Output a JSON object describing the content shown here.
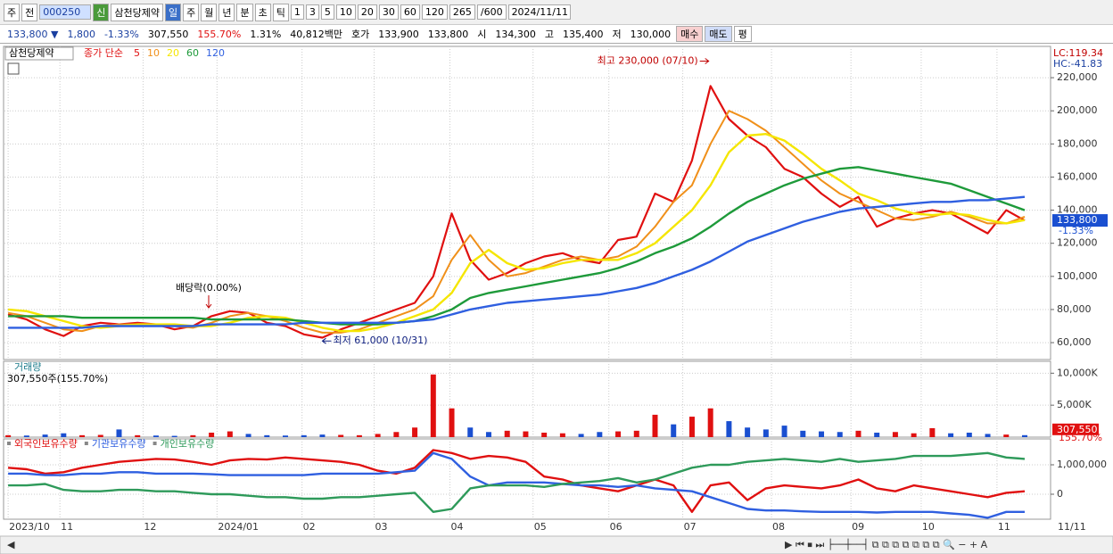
{
  "toolbar": {
    "row1": [
      "주",
      "전",
      "000250",
      "신",
      "삼천당제약",
      "일",
      "주",
      "월",
      "년",
      "분",
      "초",
      "틱",
      "1",
      "3",
      "5",
      "10",
      "20",
      "30",
      "60",
      "120",
      "265",
      "/600",
      "2024/11/11"
    ],
    "row2": [
      "133,800 ▼",
      "1,800",
      "-1.33%",
      "307,550",
      "155.70%",
      "1.31%",
      "40,812백만",
      "호가",
      "133,900",
      "133,800",
      "시",
      "134,300",
      "고",
      "135,400",
      "저",
      "130,000",
      "매수",
      "매도",
      "평"
    ]
  },
  "chart_data": [
    {
      "type": "line",
      "title": "삼천당제약",
      "legend_title": "종가 단순",
      "xlim": [
        -0.2,
        56.4
      ],
      "xticks": [
        {
          "value": 0,
          "label": "2023/10"
        },
        {
          "value": 2.8,
          "label": "11"
        },
        {
          "value": 7.3,
          "label": "12"
        },
        {
          "value": 11.3,
          "label": "2024/01"
        },
        {
          "value": 15.9,
          "label": "02"
        },
        {
          "value": 19.8,
          "label": "03"
        },
        {
          "value": 23.9,
          "label": "04"
        },
        {
          "value": 28.4,
          "label": "05"
        },
        {
          "value": 32.5,
          "label": "06"
        },
        {
          "value": 36.5,
          "label": "07"
        },
        {
          "value": 41.3,
          "label": "08"
        },
        {
          "value": 45.6,
          "label": "09"
        },
        {
          "value": 49.4,
          "label": "10"
        },
        {
          "value": 53.5,
          "label": "11"
        }
      ],
      "x_end_label": "11/11",
      "ylim": [
        49800,
        238900
      ],
      "yticks": [
        {
          "value": 60000,
          "label": "60,000"
        },
        {
          "value": 80000,
          "label": "80,000"
        },
        {
          "value": 100000,
          "label": "100,000"
        },
        {
          "value": 120000,
          "label": "120,000"
        },
        {
          "value": 140000,
          "label": "140,000"
        },
        {
          "value": 160000,
          "label": "160,000"
        },
        {
          "value": 180000,
          "label": "180,000"
        },
        {
          "value": 200000,
          "label": "200,000"
        },
        {
          "value": 220000,
          "label": "220,000"
        }
      ],
      "grid": true,
      "series": [
        {
          "name": "5",
          "color": "#e01010",
          "width": 2.2,
          "values": [
            77000,
            74000,
            68000,
            64000,
            70000,
            72000,
            71000,
            72000,
            71000,
            68000,
            70000,
            76000,
            79000,
            78000,
            72000,
            70000,
            65000,
            63000,
            68000,
            72000,
            76000,
            80000,
            84000,
            100000,
            138000,
            110000,
            98000,
            102000,
            108000,
            112000,
            114000,
            110000,
            108000,
            122000,
            124000,
            150000,
            145000,
            170000,
            215000,
            195000,
            185000,
            178000,
            165000,
            160000,
            150000,
            142000,
            148000,
            130000,
            135000,
            138000,
            140000,
            138000,
            132000,
            126000,
            140000,
            133800
          ]
        },
        {
          "name": "10",
          "color": "#f0901a",
          "width": 2,
          "values": [
            78000,
            76000,
            72000,
            68000,
            67000,
            70000,
            71000,
            71000,
            71000,
            70000,
            69000,
            72000,
            76000,
            78000,
            76000,
            73000,
            69000,
            66000,
            66000,
            68000,
            72000,
            76000,
            80000,
            88000,
            110000,
            125000,
            110000,
            100000,
            102000,
            106000,
            110000,
            112000,
            110000,
            112000,
            118000,
            130000,
            145000,
            155000,
            180000,
            200000,
            195000,
            188000,
            178000,
            168000,
            158000,
            150000,
            145000,
            140000,
            135000,
            134000,
            136000,
            139000,
            136000,
            132000,
            132000,
            136000
          ]
        },
        {
          "name": "20",
          "color": "#f5e600",
          "width": 2.4,
          "values": [
            80000,
            79000,
            76000,
            73000,
            70000,
            69000,
            70000,
            71000,
            71000,
            71000,
            70000,
            70000,
            72000,
            75000,
            76000,
            75000,
            72000,
            69000,
            67000,
            67000,
            69000,
            72000,
            76000,
            80000,
            90000,
            108000,
            116000,
            108000,
            104000,
            105000,
            108000,
            110000,
            110000,
            110000,
            114000,
            120000,
            130000,
            140000,
            155000,
            175000,
            185000,
            186000,
            182000,
            174000,
            165000,
            158000,
            150000,
            146000,
            141000,
            138000,
            137000,
            138000,
            137000,
            134000,
            132000,
            134000
          ]
        },
        {
          "name": "60",
          "color": "#1e9a3a",
          "width": 2.4,
          "values": [
            76000,
            76000,
            76000,
            76000,
            75000,
            75000,
            75000,
            75000,
            75000,
            75000,
            75000,
            74000,
            74000,
            74000,
            74000,
            74000,
            73000,
            72000,
            71000,
            71000,
            71000,
            72000,
            73000,
            76000,
            80000,
            87000,
            90000,
            92000,
            94000,
            96000,
            98000,
            100000,
            102000,
            105000,
            109000,
            114000,
            118000,
            123000,
            130000,
            138000,
            145000,
            150000,
            155000,
            159000,
            162000,
            165000,
            166000,
            164000,
            162000,
            160000,
            158000,
            156000,
            152000,
            148000,
            144000,
            140000
          ]
        },
        {
          "name": "120",
          "color": "#2f5fe0",
          "width": 2.4,
          "values": [
            69000,
            69000,
            69000,
            69000,
            69000,
            70000,
            70000,
            70000,
            70000,
            70000,
            70000,
            71000,
            71000,
            71000,
            71000,
            71000,
            72000,
            72000,
            72000,
            72000,
            72000,
            72000,
            73000,
            74000,
            77000,
            80000,
            82000,
            84000,
            85000,
            86000,
            87000,
            88000,
            89000,
            91000,
            93000,
            96000,
            100000,
            104000,
            109000,
            115000,
            121000,
            125000,
            129000,
            133000,
            136000,
            139000,
            141000,
            142000,
            143000,
            144000,
            145000,
            145000,
            146000,
            146000,
            147000,
            148000
          ]
        }
      ],
      "annotations": {
        "high": {
          "label": "최고 230,000 (07/10)",
          "value": 230000
        },
        "low": {
          "label": "최저 61,000 (10/31)",
          "value": 61000
        },
        "ex_dividend": "배당락(0.00%)"
      },
      "last_price": {
        "value": 133800,
        "label": "133,800"
      },
      "last_change": "-1.33%",
      "lc": "LC:119.34",
      "hc": "HC:-41.83"
    },
    {
      "type": "bar",
      "title": "거래량",
      "subtitle": "307,550주(155.70%)",
      "up_color": "#e01010",
      "down_color": "#1a4fd0",
      "ylim": [
        0,
        11860
      ],
      "yticks": [
        {
          "value": 5000,
          "label": "5,000K"
        },
        {
          "value": 10000,
          "label": "10,000K"
        }
      ],
      "values": [
        300,
        250,
        400,
        600,
        300,
        350,
        1200,
        300,
        250,
        200,
        300,
        700,
        900,
        500,
        300,
        250,
        300,
        400,
        350,
        300,
        500,
        800,
        1500,
        9800,
        4500,
        1500,
        800,
        1000,
        900,
        700,
        600,
        500,
        800,
        900,
        1000,
        3500,
        2000,
        3200,
        4500,
        2500,
        1500,
        1200,
        1800,
        1000,
        900,
        800,
        1000,
        700,
        800,
        600,
        1400,
        600,
        700,
        500,
        400,
        307.55
      ],
      "last_volume": {
        "value": 307.55,
        "label": "307,550"
      },
      "last_ratio": "155.70%"
    },
    {
      "type": "line",
      "ylim": [
        -848000,
        1879000
      ],
      "yticks": [
        {
          "value": 0,
          "label": "0"
        },
        {
          "value": 1000000,
          "label": "1,000,000"
        }
      ],
      "series": [
        {
          "name": "외국인보유수량",
          "color": "#e01010",
          "width": 2.4,
          "values": [
            900000,
            850000,
            700000,
            750000,
            900000,
            1000000,
            1100000,
            1150000,
            1200000,
            1180000,
            1100000,
            1000000,
            1150000,
            1200000,
            1180000,
            1250000,
            1200000,
            1150000,
            1100000,
            1000000,
            800000,
            700000,
            900000,
            1500000,
            1400000,
            1200000,
            1300000,
            1250000,
            1100000,
            600000,
            500000,
            300000,
            200000,
            100000,
            300000,
            500000,
            300000,
            -600000,
            300000,
            400000,
            -200000,
            200000,
            300000,
            250000,
            200000,
            300000,
            500000,
            200000,
            100000,
            300000,
            200000,
            100000,
            0,
            -100000,
            50000,
            100000
          ]
        },
        {
          "name": "기관보유수량",
          "color": "#2f5fe0",
          "width": 2.4,
          "values": [
            700000,
            700000,
            650000,
            650000,
            700000,
            700000,
            750000,
            750000,
            700000,
            700000,
            700000,
            680000,
            650000,
            650000,
            650000,
            650000,
            650000,
            700000,
            700000,
            700000,
            700000,
            750000,
            800000,
            1400000,
            1200000,
            600000,
            300000,
            400000,
            400000,
            400000,
            350000,
            300000,
            300000,
            250000,
            300000,
            200000,
            150000,
            100000,
            -100000,
            -300000,
            -500000,
            -550000,
            -550000,
            -580000,
            -600000,
            -600000,
            -600000,
            -620000,
            -600000,
            -600000,
            -600000,
            -650000,
            -700000,
            -800000,
            -600000,
            -600000
          ]
        },
        {
          "name": "개인보유수량",
          "color": "#2e9a5a",
          "width": 2.4,
          "values": [
            300000,
            300000,
            350000,
            150000,
            100000,
            100000,
            150000,
            150000,
            100000,
            100000,
            50000,
            0,
            0,
            -50000,
            -100000,
            -100000,
            -150000,
            -150000,
            -100000,
            -100000,
            -50000,
            0,
            50000,
            -600000,
            -500000,
            200000,
            300000,
            300000,
            300000,
            250000,
            350000,
            400000,
            450000,
            550000,
            400000,
            500000,
            700000,
            900000,
            1000000,
            1000000,
            1100000,
            1150000,
            1200000,
            1150000,
            1100000,
            1200000,
            1100000,
            1150000,
            1200000,
            1300000,
            1300000,
            1300000,
            1350000,
            1400000,
            1250000,
            1200000
          ]
        }
      ]
    }
  ]
}
